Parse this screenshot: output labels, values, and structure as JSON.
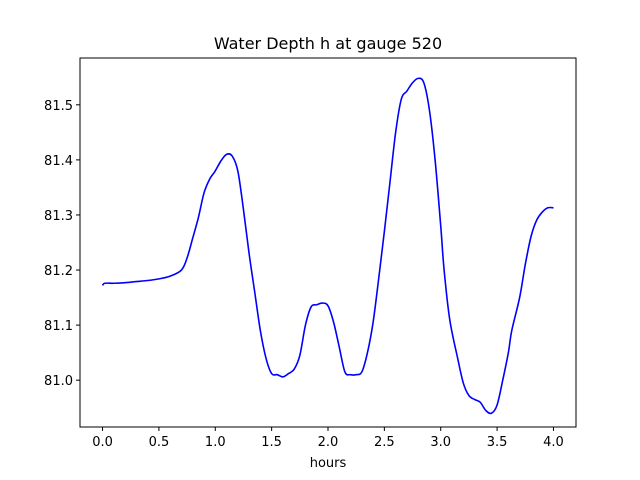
{
  "chart_data": {
    "type": "line",
    "title": "Water Depth h at gauge 520",
    "xlabel": "hours",
    "ylabel": "",
    "xlim": [
      -0.2,
      4.2
    ],
    "ylim": [
      80.915,
      81.585
    ],
    "xticks": [
      "0.0",
      "0.5",
      "1.0",
      "1.5",
      "2.0",
      "2.5",
      "3.0",
      "3.5",
      "4.0"
    ],
    "yticks": [
      "81.0",
      "81.1",
      "81.2",
      "81.3",
      "81.4",
      "81.5"
    ],
    "grid": false,
    "legend": "none",
    "series": [
      {
        "color": "#0000ff",
        "x": [
          0.0,
          0.02,
          0.1,
          0.2,
          0.3,
          0.4,
          0.5,
          0.6,
          0.7,
          0.75,
          0.8,
          0.85,
          0.9,
          0.95,
          1.0,
          1.05,
          1.1,
          1.15,
          1.2,
          1.25,
          1.3,
          1.35,
          1.4,
          1.45,
          1.5,
          1.55,
          1.6,
          1.65,
          1.7,
          1.75,
          1.8,
          1.85,
          1.9,
          1.95,
          2.0,
          2.05,
          2.1,
          2.15,
          2.2,
          2.25,
          2.3,
          2.35,
          2.4,
          2.45,
          2.5,
          2.55,
          2.6,
          2.65,
          2.7,
          2.75,
          2.8,
          2.85,
          2.9,
          2.95,
          3.0,
          3.03,
          3.08,
          3.15,
          3.2,
          3.25,
          3.3,
          3.35,
          3.4,
          3.45,
          3.5,
          3.55,
          3.6,
          3.63,
          3.7,
          3.75,
          3.8,
          3.85,
          3.9,
          3.95,
          4.0
        ],
        "y": [
          81.172,
          81.176,
          81.176,
          81.177,
          81.179,
          81.181,
          81.184,
          81.189,
          81.2,
          81.222,
          81.258,
          81.295,
          81.34,
          81.365,
          81.38,
          81.398,
          81.41,
          81.407,
          81.38,
          81.31,
          81.23,
          81.16,
          81.09,
          81.04,
          81.012,
          81.01,
          81.006,
          81.012,
          81.02,
          81.045,
          81.1,
          81.133,
          81.137,
          81.14,
          81.135,
          81.105,
          81.06,
          81.015,
          81.01,
          81.01,
          81.015,
          81.05,
          81.105,
          81.185,
          81.27,
          81.36,
          81.45,
          81.51,
          81.525,
          81.54,
          81.548,
          81.54,
          81.49,
          81.4,
          81.28,
          81.2,
          81.11,
          81.04,
          80.995,
          80.972,
          80.965,
          80.96,
          80.945,
          80.94,
          80.955,
          81.0,
          81.05,
          81.09,
          81.15,
          81.21,
          81.26,
          81.29,
          81.305,
          81.313,
          81.313
        ]
      }
    ]
  }
}
